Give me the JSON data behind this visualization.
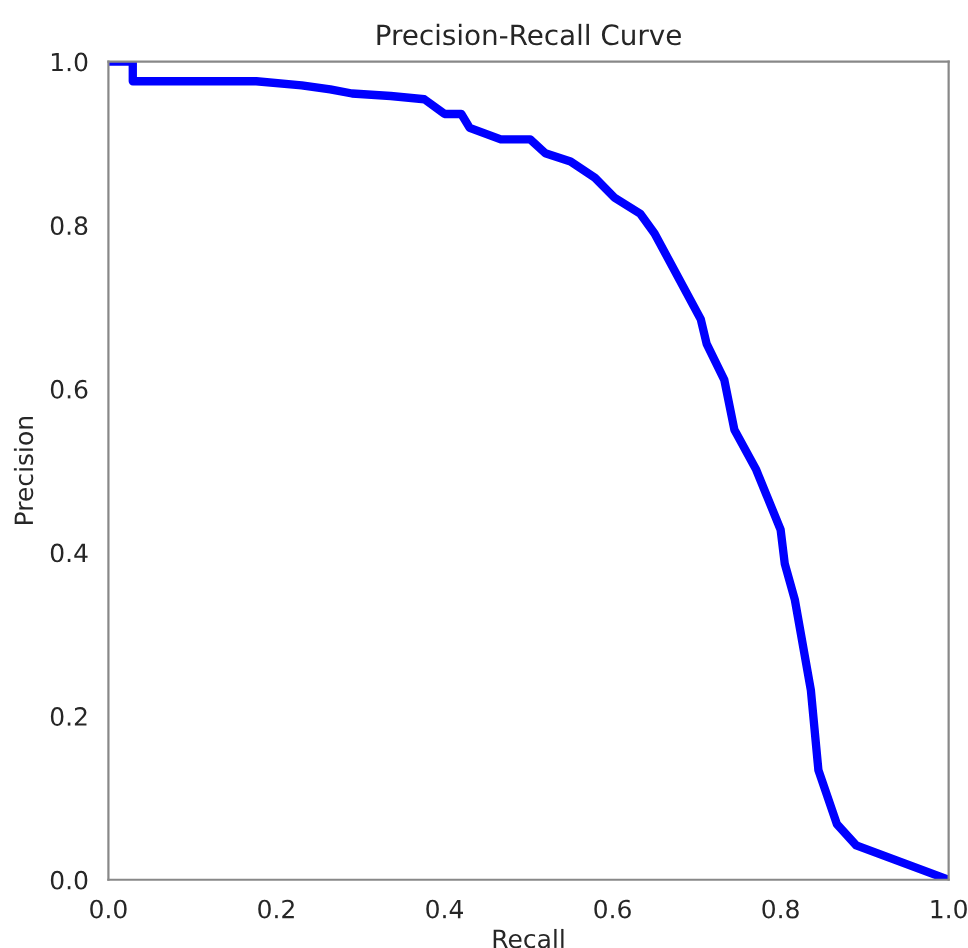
{
  "chart_data": {
    "type": "line",
    "title": "Precision-Recall Curve",
    "xlabel": "Recall",
    "ylabel": "Precision",
    "xlim": [
      0,
      1
    ],
    "ylim": [
      0,
      1
    ],
    "xticks": [
      {
        "value": 0,
        "label": "0.0"
      },
      0.2,
      0.4,
      0.6,
      0.8,
      {
        "value": 1,
        "label": "1.0"
      }
    ],
    "yticks": [
      {
        "value": 0,
        "label": "0.0"
      },
      0.2,
      0.4,
      0.6,
      0.8,
      {
        "value": 1,
        "label": "1.0"
      }
    ],
    "grid": false,
    "legend": false,
    "series": [
      {
        "color": "#0000ff",
        "x": [
          0,
          0.029,
          0.029,
          0.176,
          0.23,
          0.264,
          0.29,
          0.336,
          0.376,
          0.4,
          0.42,
          0.43,
          0.467,
          0.502,
          0.52,
          0.55,
          0.579,
          0.602,
          0.633,
          0.65,
          0.705,
          0.712,
          0.733,
          0.745,
          0.771,
          0.8,
          0.805,
          0.817,
          0.836,
          0.845,
          0.867,
          0.89,
          1.0
        ],
        "values": [
          1.0,
          1.0,
          0.976,
          0.976,
          0.971,
          0.966,
          0.961,
          0.958,
          0.954,
          0.936,
          0.936,
          0.919,
          0.905,
          0.905,
          0.888,
          0.878,
          0.858,
          0.834,
          0.814,
          0.79,
          0.685,
          0.655,
          0.611,
          0.55,
          0.501,
          0.428,
          0.386,
          0.342,
          0.232,
          0.134,
          0.068,
          0.042,
          0.0
        ]
      }
    ]
  }
}
